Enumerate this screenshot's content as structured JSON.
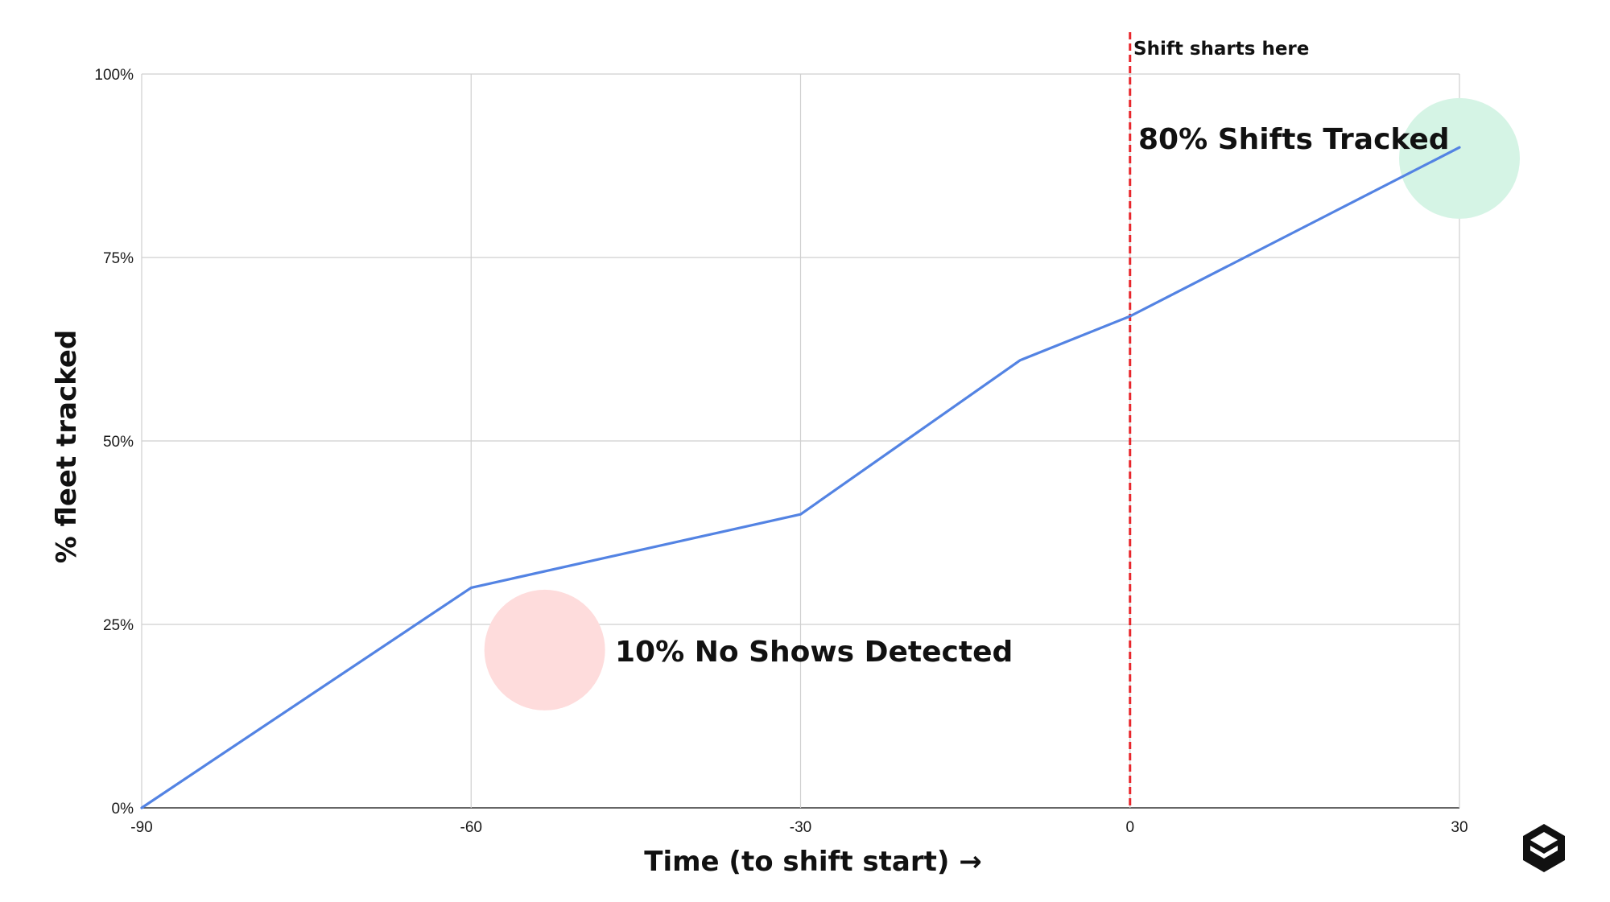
{
  "chart_data": {
    "type": "line",
    "xlabel": "Time (to shift start) →",
    "ylabel": "% fleet tracked",
    "xlim": [
      -90,
      30
    ],
    "ylim": [
      0,
      100
    ],
    "x_ticks": [
      -90,
      -60,
      -30,
      0,
      30
    ],
    "x_tick_labels": [
      "-90",
      "-60",
      "-30",
      "0",
      "30"
    ],
    "y_ticks": [
      0,
      25,
      50,
      75,
      100
    ],
    "y_tick_labels": [
      "0%",
      "25%",
      "50%",
      "75%",
      "100%"
    ],
    "grid": true,
    "series": [
      {
        "x": [
          -90,
          -60,
          -30,
          -10,
          0,
          30
        ],
        "y": [
          0,
          30,
          40,
          61,
          67,
          90
        ],
        "color": "#5383e3"
      }
    ],
    "vertical_marker": {
      "x": 0,
      "label": "Shift sharts here",
      "color": "#e8262b"
    },
    "annotations": [
      {
        "text": "80% Shifts Tracked",
        "x": 30,
        "y": 88.5,
        "color": "#d5f4e5"
      },
      {
        "text": "10% No Shows Detected",
        "x": -53.3,
        "y": 21.5,
        "color": "#fedcdc"
      }
    ]
  },
  "logo": {
    "icon": "cube-logo-icon",
    "color": "#111111"
  }
}
